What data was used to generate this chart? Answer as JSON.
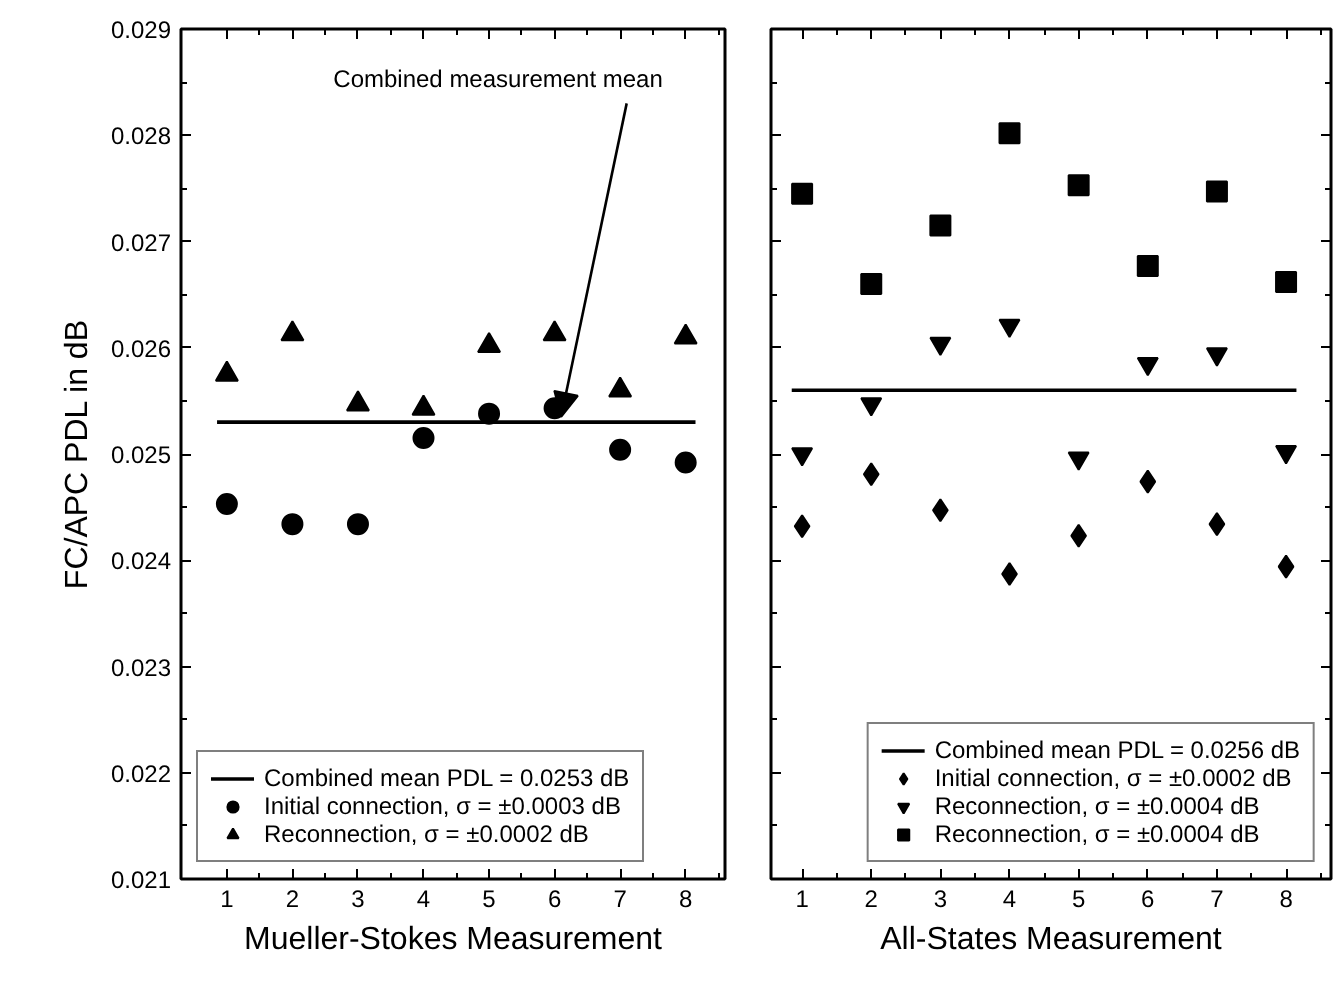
{
  "chart_data": [
    {
      "type": "scatter",
      "xlabel": "Mueller-Stokes Measurement",
      "ylabel": "FC/APC PDL in dB",
      "x": [
        1,
        2,
        3,
        4,
        5,
        6,
        7,
        8
      ],
      "xlim": [
        0.3,
        8.6
      ],
      "xticks": [
        1,
        2,
        3,
        4,
        5,
        6,
        7,
        8
      ],
      "ylim": [
        0.021,
        0.029
      ],
      "yticks": [
        0.021,
        0.022,
        0.023,
        0.024,
        0.025,
        0.026,
        0.027,
        0.028,
        0.029
      ],
      "legend": "bottom left",
      "grid": false,
      "ref_lines": [
        {
          "axis": "y",
          "value": 0.0253,
          "label": "Combined mean PDL = 0.0253 dB",
          "color": "#000000"
        }
      ],
      "annotations": [
        {
          "text": "Combined measurement mean",
          "x": 6.1,
          "y": 0.0253
        }
      ],
      "series": [
        {
          "name": "Initial connection, σ = ±0.0003 dB",
          "color": "#000000",
          "marker": "circle",
          "values": [
            0.02453,
            0.02434,
            0.02434,
            0.02515,
            0.02538,
            0.02543,
            0.02504,
            0.02492
          ]
        },
        {
          "name": "Reconnection, σ = ±0.0002 dB",
          "color": "#000000",
          "marker": "triangle",
          "values": [
            0.02575,
            0.02613,
            0.02547,
            0.02543,
            0.02602,
            0.02613,
            0.0256,
            0.0261
          ]
        }
      ]
    },
    {
      "type": "scatter",
      "xlabel": "All-States Measurement",
      "x": [
        1,
        2,
        3,
        4,
        5,
        6,
        7,
        8
      ],
      "xlim": [
        0.55,
        8.65
      ],
      "xticks": [
        1,
        2,
        3,
        4,
        5,
        6,
        7,
        8
      ],
      "ylim": [
        0.021,
        0.029
      ],
      "yticks": [
        0.021,
        0.022,
        0.023,
        0.024,
        0.025,
        0.026,
        0.027,
        0.028,
        0.029
      ],
      "tick_labels": "x",
      "legend": "bottom right",
      "grid": false,
      "ref_lines": [
        {
          "axis": "y",
          "value": 0.0256,
          "label": "Combined mean PDL = 0.0256 dB",
          "color": "#000000"
        }
      ],
      "series": [
        {
          "name": "Initial connection, σ = ±0.0002 dB",
          "color": "#000000",
          "marker": "diamond",
          "values": [
            0.02432,
            0.02481,
            0.02447,
            0.02387,
            0.02423,
            0.02474,
            0.02434,
            0.02394
          ]
        },
        {
          "name": "Reconnection, σ = ±0.0004 dB",
          "color": "#000000",
          "values": [
            0.025,
            0.02547,
            0.02604,
            0.02621,
            0.02496,
            0.02585,
            0.02594,
            0.02502
          ]
        },
        {
          "name": "Reconnection, σ = ±0.0004 dB",
          "color": "#000000",
          "marker": "square",
          "values": [
            0.02745,
            0.0266,
            0.02715,
            0.02802,
            0.02753,
            0.02677,
            0.02747,
            0.02662
          ]
        }
      ]
    }
  ]
}
